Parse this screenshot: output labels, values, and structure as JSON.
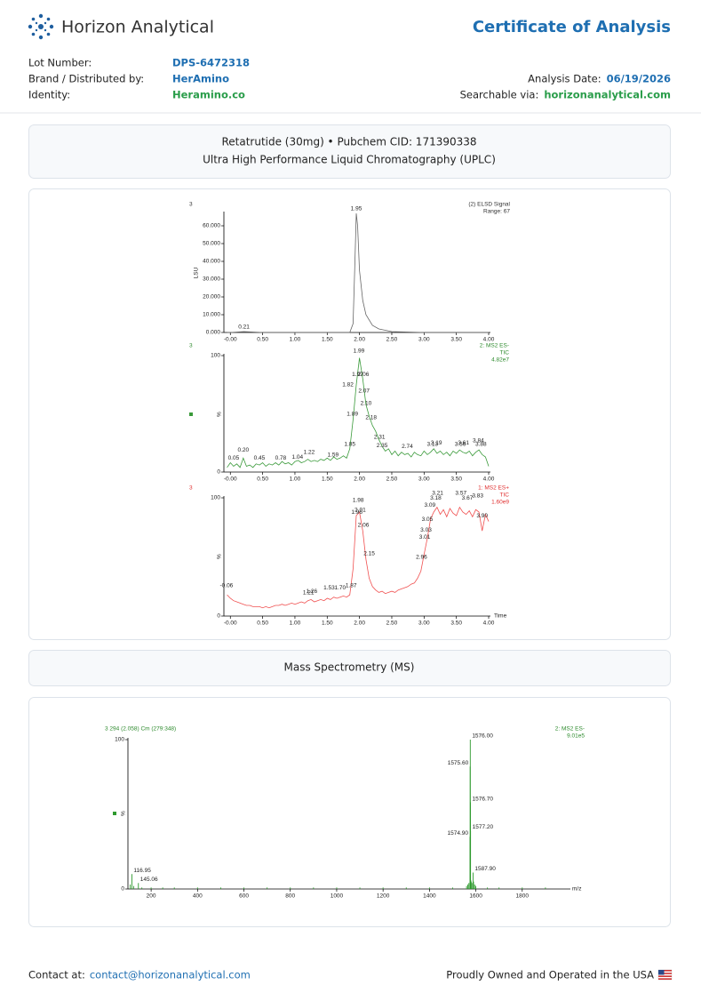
{
  "header": {
    "brand": "Horizon Analytical",
    "title": "Certificate of Analysis"
  },
  "info": {
    "left": [
      {
        "label": "Lot Number:",
        "value": "DPS-6472318"
      },
      {
        "label": "Brand / Distributed by:",
        "value": "HerAmino"
      },
      {
        "label": "Identity:",
        "value": "Heramino.co"
      }
    ],
    "right": [
      {
        "label": "Analysis Date:",
        "value": "06/19/2026"
      },
      {
        "label": "Searchable via:",
        "value": "horizonanalytical.com"
      }
    ]
  },
  "sections": [
    {
      "lines": [
        "Retatrutide (30mg) • Pubchem CID: 171390338",
        "Ultra High Performance Liquid Chromatography (UPLC)"
      ]
    },
    {
      "lines": [
        "Mass Spectrometry (MS)"
      ]
    }
  ],
  "chart_data": [
    {
      "type": "line",
      "corner_label": "3",
      "legend": [
        "(2) ELSD Signal",
        "Range: 67"
      ],
      "ylabel": "LSU",
      "color": "#666666",
      "xlim": [
        -0.1,
        4.0
      ],
      "ylim": [
        0,
        67
      ],
      "xticks": [
        {
          "value": 0,
          "label": "-0.00"
        },
        {
          "value": 0.5,
          "label": "0.50"
        },
        {
          "value": 1.0,
          "label": "1.00"
        },
        {
          "value": 1.5,
          "label": "1.50"
        },
        {
          "value": 2.0,
          "label": "2.00"
        },
        {
          "value": 2.5,
          "label": "2.50"
        },
        {
          "value": 3.0,
          "label": "3.00"
        },
        {
          "value": 3.5,
          "label": "3.50"
        },
        {
          "value": 4.0,
          "label": "4.00"
        }
      ],
      "yticks": [
        {
          "value": 0,
          "label": "0.000"
        },
        {
          "value": 10,
          "label": "10.000"
        },
        {
          "value": 20,
          "label": "20.000"
        },
        {
          "value": 30,
          "label": "30.000"
        },
        {
          "value": 40,
          "label": "40.000"
        },
        {
          "value": 50,
          "label": "50.000"
        },
        {
          "value": 60,
          "label": "60.000"
        }
      ],
      "x": [
        -0.05,
        0,
        0.21,
        0.5,
        1.0,
        1.5,
        1.85,
        1.9,
        1.93,
        1.95,
        1.97,
        2.0,
        2.05,
        2.1,
        2.2,
        2.3,
        2.5,
        3.0,
        3.5,
        4.0
      ],
      "values": [
        0,
        0,
        0.5,
        0,
        0,
        0,
        0,
        5,
        40,
        67,
        60,
        35,
        18,
        10,
        4,
        2,
        0.5,
        0,
        0,
        0
      ],
      "peaks": {
        "x": [
          0.21,
          1.95
        ],
        "y": [
          0.5,
          67
        ],
        "labels": [
          "0.21",
          "1.95"
        ]
      }
    },
    {
      "type": "line",
      "corner_label": "3",
      "legend": [
        "2: MS2 ES-",
        "TIC",
        "4.82e7"
      ],
      "ylabel": "%",
      "color": "#3a9a3a",
      "xlim": [
        -0.1,
        4.0
      ],
      "ylim": [
        0,
        100
      ],
      "xticks": [
        {
          "value": 0,
          "label": "-0.00"
        },
        {
          "value": 0.5,
          "label": "0.50"
        },
        {
          "value": 1.0,
          "label": "1.00"
        },
        {
          "value": 1.5,
          "label": "1.50"
        },
        {
          "value": 2.0,
          "label": "2.00"
        },
        {
          "value": 2.5,
          "label": "2.50"
        },
        {
          "value": 3.0,
          "label": "3.00"
        },
        {
          "value": 3.5,
          "label": "3.50"
        },
        {
          "value": 4.0,
          "label": "4.00"
        }
      ],
      "yticks": [
        0,
        100
      ],
      "x": [
        -0.05,
        0,
        0.05,
        0.1,
        0.15,
        0.2,
        0.25,
        0.3,
        0.35,
        0.4,
        0.45,
        0.5,
        0.55,
        0.6,
        0.65,
        0.7,
        0.75,
        0.8,
        0.85,
        0.9,
        0.95,
        1.0,
        1.05,
        1.1,
        1.15,
        1.2,
        1.25,
        1.3,
        1.35,
        1.4,
        1.45,
        1.5,
        1.55,
        1.6,
        1.65,
        1.7,
        1.75,
        1.8,
        1.85,
        1.9,
        1.95,
        2.0,
        2.05,
        2.1,
        2.15,
        2.2,
        2.25,
        2.3,
        2.35,
        2.4,
        2.45,
        2.5,
        2.55,
        2.6,
        2.65,
        2.7,
        2.75,
        2.8,
        2.85,
        2.9,
        2.95,
        3.0,
        3.05,
        3.1,
        3.15,
        3.2,
        3.25,
        3.3,
        3.35,
        3.4,
        3.45,
        3.5,
        3.55,
        3.6,
        3.65,
        3.7,
        3.75,
        3.8,
        3.85,
        3.9,
        3.95,
        4.0
      ],
      "values": [
        4,
        8,
        5,
        7,
        4,
        12,
        5,
        6,
        4,
        7,
        6,
        8,
        5,
        7,
        6,
        8,
        6,
        9,
        7,
        8,
        6,
        9,
        10,
        8,
        9,
        11,
        9,
        10,
        9,
        11,
        10,
        12,
        10,
        13,
        11,
        12,
        14,
        12,
        20,
        45,
        75,
        98,
        80,
        58,
        48,
        40,
        35,
        28,
        22,
        18,
        20,
        15,
        18,
        14,
        17,
        15,
        16,
        13,
        17,
        15,
        14,
        18,
        15,
        17,
        20,
        16,
        18,
        15,
        17,
        14,
        18,
        16,
        19,
        17,
        16,
        18,
        14,
        17,
        19,
        15,
        13,
        5
      ],
      "peaks": {
        "x": [
          0.05,
          0.2,
          0.45,
          0.78,
          1.04,
          1.22,
          1.59,
          1.85,
          1.89,
          1.82,
          1.97,
          1.99,
          2.06,
          2.07,
          2.1,
          2.18,
          2.31,
          2.35,
          2.74,
          3.13,
          3.19,
          3.56,
          3.61,
          3.84,
          3.88
        ],
        "y": [
          8,
          15,
          8,
          8,
          9,
          13,
          11,
          20,
          46,
          71,
          80,
          100,
          80,
          66,
          55,
          43,
          26,
          19,
          18,
          20,
          21,
          20,
          21,
          23,
          20
        ],
        "labels": [
          "0.05",
          "0.20",
          "0.45",
          "0.78",
          "1.04",
          "1.22",
          "1.59",
          "1.85",
          "1.89",
          "1.82",
          "1.97",
          "1.99",
          "2.06",
          "2.07",
          "2.10",
          "2.18",
          "2.31",
          "2.35",
          "2.74",
          "3.13",
          "3.19",
          "3.56",
          "3.61",
          "3.84",
          "3.88"
        ]
      }
    },
    {
      "type": "line",
      "corner_label": "3",
      "legend": [
        "1: MS2 ES+",
        "TIC",
        "1.60e9"
      ],
      "ylabel": "%",
      "xlabel": "Time",
      "color": "#f05050",
      "xlim": [
        -0.1,
        4.0
      ],
      "ylim": [
        0,
        100
      ],
      "xticks": [
        {
          "value": 0,
          "label": "-0.00"
        },
        {
          "value": 0.5,
          "label": "0.50"
        },
        {
          "value": 1.0,
          "label": "1.00"
        },
        {
          "value": 1.5,
          "label": "1.50"
        },
        {
          "value": 2.0,
          "label": "2.00"
        },
        {
          "value": 2.5,
          "label": "2.50"
        },
        {
          "value": 3.0,
          "label": "3.00"
        },
        {
          "value": 3.5,
          "label": "3.50"
        },
        {
          "value": 4.0,
          "label": "4.00"
        }
      ],
      "yticks": [
        0,
        100
      ],
      "x": [
        -0.05,
        0,
        0.05,
        0.1,
        0.15,
        0.2,
        0.25,
        0.3,
        0.35,
        0.4,
        0.45,
        0.5,
        0.55,
        0.6,
        0.65,
        0.7,
        0.75,
        0.8,
        0.85,
        0.9,
        0.95,
        1.0,
        1.05,
        1.1,
        1.15,
        1.2,
        1.25,
        1.3,
        1.35,
        1.4,
        1.45,
        1.5,
        1.55,
        1.6,
        1.65,
        1.7,
        1.75,
        1.8,
        1.85,
        1.9,
        1.95,
        2.0,
        2.05,
        2.1,
        2.15,
        2.2,
        2.25,
        2.3,
        2.35,
        2.4,
        2.45,
        2.5,
        2.55,
        2.6,
        2.65,
        2.7,
        2.75,
        2.8,
        2.85,
        2.9,
        2.95,
        3.0,
        3.05,
        3.1,
        3.15,
        3.2,
        3.25,
        3.3,
        3.35,
        3.4,
        3.45,
        3.5,
        3.55,
        3.6,
        3.65,
        3.7,
        3.75,
        3.8,
        3.85,
        3.9,
        3.95,
        4.0
      ],
      "values": [
        18,
        15,
        13,
        12,
        11,
        10,
        9,
        9,
        8,
        8,
        8,
        7,
        8,
        7,
        8,
        9,
        9,
        10,
        9,
        10,
        11,
        10,
        11,
        12,
        11,
        13,
        14,
        12,
        13,
        14,
        13,
        15,
        14,
        16,
        15,
        16,
        17,
        16,
        18,
        40,
        85,
        88,
        72,
        48,
        32,
        25,
        22,
        20,
        21,
        19,
        20,
        21,
        20,
        22,
        23,
        24,
        25,
        27,
        28,
        32,
        38,
        52,
        66,
        82,
        88,
        92,
        86,
        90,
        84,
        91,
        87,
        85,
        92,
        88,
        86,
        89,
        84,
        90,
        88,
        72,
        86,
        80
      ],
      "peaks": {
        "x": [
          -0.06,
          1.21,
          1.26,
          1.53,
          1.7,
          1.87,
          1.96,
          1.98,
          2.01,
          2.06,
          2.15,
          2.96,
          3.01,
          3.03,
          3.05,
          3.09,
          3.18,
          3.21,
          3.57,
          3.67,
          3.83,
          3.9
        ],
        "y": [
          22,
          16,
          17,
          20,
          20,
          22,
          84,
          94,
          86,
          73,
          49,
          46,
          63,
          69,
          78,
          90,
          96,
          100,
          100,
          96,
          98,
          81
        ],
        "labels": [
          "-0.06",
          "1.21",
          "1.26",
          "1.53",
          "1.70",
          "1.87",
          "1.96",
          "1.98",
          "2.01",
          "2.06",
          "2.15",
          "2.96",
          "3.01",
          "3.03",
          "3.05",
          "3.09",
          "3.18",
          "3.21",
          "3.57",
          "3.67",
          "3.83",
          "3.90"
        ]
      }
    },
    {
      "type": "spectrum",
      "corner_label": "3 294 (2.058) Cm (279:348)",
      "legend": [
        "2: MS2 ES-",
        "9.01e5"
      ],
      "ylabel": "%",
      "xlabel": "m/z",
      "color": "#2e9a2e",
      "xlim": [
        100,
        2000
      ],
      "ylim": [
        0,
        100
      ],
      "xticks": [
        200,
        400,
        600,
        800,
        1000,
        1200,
        1400,
        1600,
        1800
      ],
      "yticks": [
        0,
        100
      ],
      "x": [
        110,
        116.95,
        125,
        145.06,
        160,
        200,
        250,
        300,
        400,
        500,
        600,
        700,
        800,
        900,
        1000,
        1100,
        1200,
        1300,
        1400,
        1500,
        1560,
        1565,
        1570,
        1574.9,
        1575.6,
        1576,
        1576.7,
        1577.2,
        1578,
        1580,
        1583,
        1587.9,
        1590,
        1595,
        1600,
        1650,
        1700,
        1800,
        1900
      ],
      "values": [
        3,
        10,
        2,
        4,
        1,
        1,
        1,
        1,
        1,
        1,
        1,
        1,
        1,
        1,
        1,
        1,
        1,
        1,
        1,
        1,
        2,
        3,
        4,
        35,
        82,
        100,
        58,
        39,
        6,
        5,
        4,
        11,
        5,
        3,
        2,
        1,
        1,
        1,
        1
      ],
      "peaks": {
        "x": [
          1576,
          1575.6,
          1576.7,
          1577.2,
          1574.9,
          1587.9,
          116.95,
          145.06
        ],
        "y": [
          100,
          82,
          58,
          39,
          35,
          11,
          10,
          4
        ],
        "labels": [
          "1576.00",
          "1575.60",
          "1576.70",
          "1577.20",
          "1574.90",
          "1587.90",
          "116.95",
          "145.06"
        ]
      }
    }
  ],
  "footer": {
    "contact_label": "Contact at:",
    "contact": "contact@horizonanalytical.com",
    "note": "Proudly Owned and Operated in the USA"
  }
}
